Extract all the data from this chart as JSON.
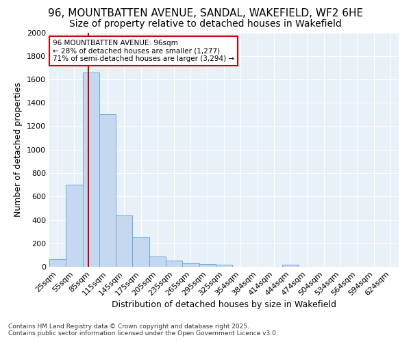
{
  "title1": "96, MOUNTBATTEN AVENUE, SANDAL, WAKEFIELD, WF2 6HE",
  "title2": "Size of property relative to detached houses in Wakefield",
  "xlabel": "Distribution of detached houses by size in Wakefield",
  "ylabel": "Number of detached properties",
  "bin_labels": [
    "25sqm",
    "55sqm",
    "85sqm",
    "115sqm",
    "145sqm",
    "175sqm",
    "205sqm",
    "235sqm",
    "265sqm",
    "295sqm",
    "325sqm",
    "354sqm",
    "384sqm",
    "414sqm",
    "444sqm",
    "474sqm",
    "504sqm",
    "534sqm",
    "564sqm",
    "594sqm",
    "624sqm"
  ],
  "bar_values": [
    65,
    700,
    1660,
    1300,
    440,
    250,
    90,
    50,
    30,
    25,
    20,
    0,
    0,
    0,
    20,
    0,
    0,
    0,
    0,
    0,
    0
  ],
  "bar_color": "#c5d8f0",
  "bar_edge_color": "#6aaad4",
  "annotation_text": "96 MOUNTBATTEN AVENUE: 96sqm\n← 28% of detached houses are smaller (1,277)\n71% of semi-detached houses are larger (3,294) →",
  "annotation_box_color": "#ffffff",
  "annotation_border_color": "#cc0000",
  "ylim": [
    0,
    2000
  ],
  "yticks": [
    0,
    200,
    400,
    600,
    800,
    1000,
    1200,
    1400,
    1600,
    1800,
    2000
  ],
  "footnote1": "Contains HM Land Registry data © Crown copyright and database right 2025.",
  "footnote2": "Contains public sector information licensed under the Open Government Licence v3.0.",
  "bg_color": "#ffffff",
  "plot_bg_color": "#e8f0f8",
  "grid_color": "#ffffff",
  "title1_fontsize": 11,
  "title2_fontsize": 10,
  "tick_fontsize": 8,
  "ylabel_fontsize": 9,
  "xlabel_fontsize": 9,
  "footnote_fontsize": 6.5
}
